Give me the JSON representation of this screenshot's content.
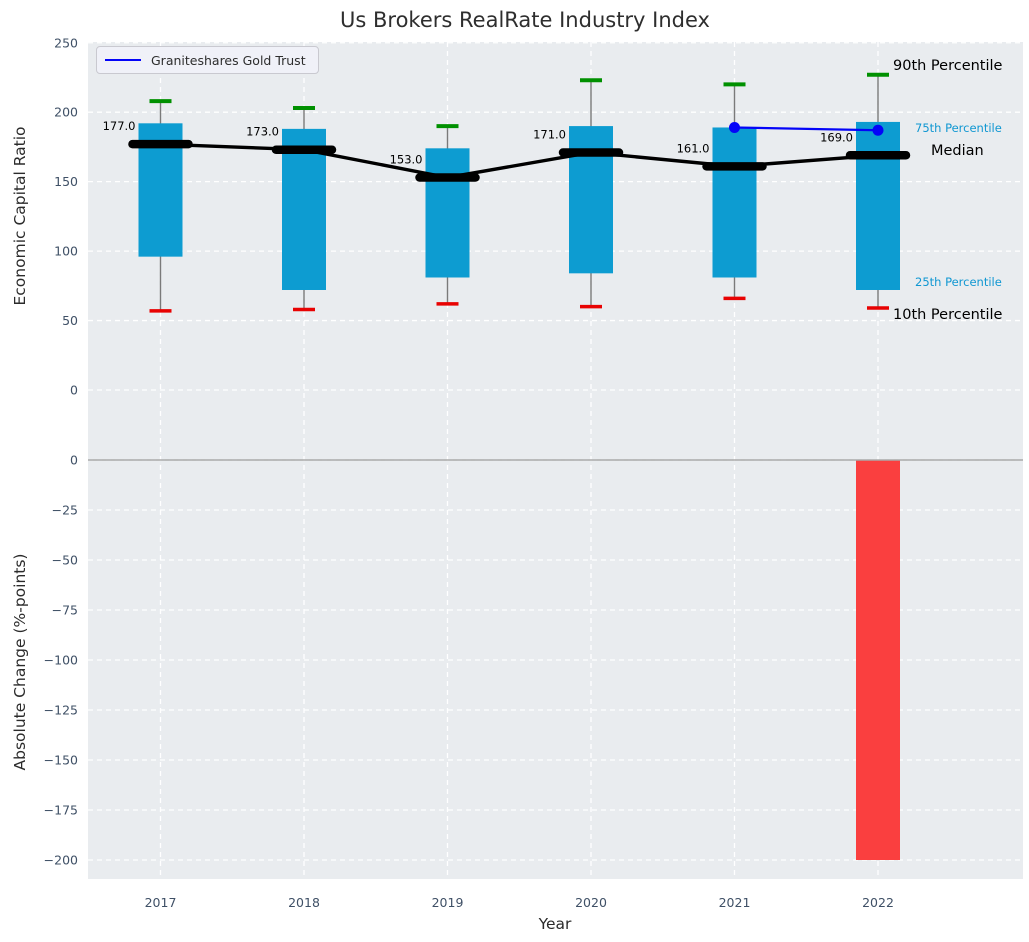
{
  "chart_data": [
    {
      "type": "box-percentiles-with-median-line",
      "title": "Us Brokers RealRate Industry Index",
      "ylabel": "Economic Capital Ratio",
      "categories": [
        2017,
        2018,
        2019,
        2020,
        2021,
        2022
      ],
      "yticks": [
        0,
        50,
        100,
        150,
        200,
        250
      ],
      "ylim": [
        -39,
        251
      ],
      "grid": "white-dashed",
      "legend": {
        "label": "Graniteshares Gold Trust",
        "position": "upper left"
      },
      "series": [
        {
          "name": "90th Percentile",
          "values": [
            208,
            203,
            190,
            223,
            220,
            227
          ]
        },
        {
          "name": "75th Percentile",
          "values": [
            192,
            188,
            174,
            190,
            189,
            193
          ]
        },
        {
          "name": "Median",
          "values": [
            177,
            173,
            153,
            171,
            161,
            169
          ]
        },
        {
          "name": "25th Percentile",
          "values": [
            96,
            72,
            81,
            84,
            81,
            72
          ]
        },
        {
          "name": "10th Percentile",
          "values": [
            57,
            58,
            62,
            60,
            66,
            59
          ]
        },
        {
          "name": "Graniteshares Gold Trust",
          "values": [
            null,
            null,
            null,
            null,
            189,
            187
          ]
        }
      ],
      "median_labels": [
        "177.0",
        "173.0",
        "153.0",
        "171.0",
        "161.0",
        "169.0"
      ],
      "right_annotations": [
        {
          "text": "90th Percentile",
          "style": "major"
        },
        {
          "text": "75th Percentile",
          "style": "minor"
        },
        {
          "text": "Median",
          "style": "major"
        },
        {
          "text": "25th Percentile",
          "style": "minor"
        },
        {
          "text": "10th Percentile",
          "style": "major"
        }
      ],
      "colors": {
        "background": "#e9ecef",
        "box": "#0d9cd1",
        "percentile_text": "#1097d2",
        "p90_cap": "#009000",
        "p10_cap": "#e80202",
        "median": "#000000",
        "line": "#0404f8",
        "whisker": "#7a7a7a",
        "grid": "#ffffff"
      }
    },
    {
      "type": "bar",
      "ylabel": "Absolute Change (%-points)",
      "xlabel": "Year",
      "categories": [
        2017,
        2018,
        2019,
        2020,
        2021,
        2022
      ],
      "values": [
        null,
        null,
        null,
        null,
        null,
        -200
      ],
      "yticks": [
        0,
        -25,
        -50,
        -75,
        -100,
        -125,
        -150,
        -175,
        -200
      ],
      "ylim": [
        -213,
        9
      ],
      "grid": "white-dashed",
      "bar_color": "#fa3f3f",
      "zero_line_color": "#a9a9a9"
    }
  ]
}
